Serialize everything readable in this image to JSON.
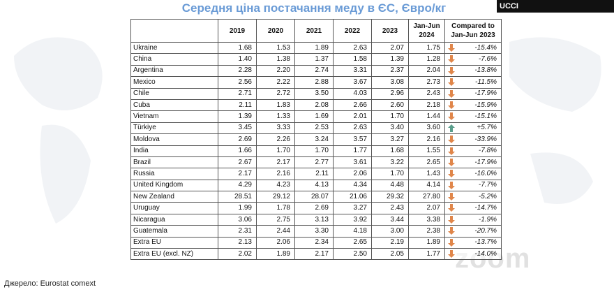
{
  "header": {
    "title": "Середня ціна постачання меду в ЄС, Євро/кг",
    "badge": "UCCI"
  },
  "table": {
    "columns": [
      "",
      "2019",
      "2020",
      "2021",
      "2022",
      "2023",
      "Jan-Jun 2024",
      "Compared to Jan-Jun 2023"
    ],
    "rows": [
      [
        "Ukraine",
        "1.68",
        "1.53",
        "1.89",
        "2.63",
        "2.07",
        "1.75",
        "-15.4%"
      ],
      [
        "China",
        "1.40",
        "1.38",
        "1.37",
        "1.58",
        "1.39",
        "1.28",
        "-7.6%"
      ],
      [
        "Argentina",
        "2.28",
        "2.20",
        "2.74",
        "3.31",
        "2.37",
        "2.04",
        "-13.8%"
      ],
      [
        "Mexico",
        "2.56",
        "2.22",
        "2.88",
        "3.67",
        "3.08",
        "2.73",
        "-11.5%"
      ],
      [
        "Chile",
        "2.71",
        "2.72",
        "3.50",
        "4.03",
        "2.96",
        "2.43",
        "-17.9%"
      ],
      [
        "Cuba",
        "2.11",
        "1.83",
        "2.08",
        "2.66",
        "2.60",
        "2.18",
        "-15.9%"
      ],
      [
        "Vietnam",
        "1.39",
        "1.33",
        "1.69",
        "2.01",
        "1.70",
        "1.44",
        "-15.1%"
      ],
      [
        "Türkiye",
        "3.45",
        "3.33",
        "2.53",
        "2.63",
        "3.40",
        "3.60",
        "+5.7%"
      ],
      [
        "Moldova",
        "2.69",
        "2.26",
        "3.24",
        "3.57",
        "3.27",
        "2.16",
        "-33.9%"
      ],
      [
        "India",
        "1.66",
        "1.70",
        "1.70",
        "1.77",
        "1.68",
        "1.55",
        "-7.8%"
      ],
      [
        "Brazil",
        "2.67",
        "2.17",
        "2.77",
        "3.61",
        "3.22",
        "2.65",
        "-17.9%"
      ],
      [
        "Russia",
        "2.17",
        "2.16",
        "2.11",
        "2.06",
        "1.70",
        "1.43",
        "-16.0%"
      ],
      [
        "United Kingdom",
        "4.29",
        "4.23",
        "4.13",
        "4.34",
        "4.48",
        "4.14",
        "-7.7%"
      ],
      [
        "New Zealand",
        "28.51",
        "29.12",
        "28.07",
        "21.06",
        "29.32",
        "27.80",
        "-5.2%"
      ],
      [
        "Uruguay",
        "1.99",
        "1.78",
        "2.69",
        "3.27",
        "2.43",
        "2.07",
        "-14.7%"
      ],
      [
        "Nicaragua",
        "3.06",
        "2.75",
        "3.13",
        "3.92",
        "3.44",
        "3.38",
        "-1.9%"
      ],
      [
        "Guatemala",
        "2.31",
        "2.44",
        "3.30",
        "4.18",
        "3.00",
        "2.38",
        "-20.7%"
      ],
      [
        "Extra EU",
        "2.13",
        "2.06",
        "2.34",
        "2.65",
        "2.19",
        "1.89",
        "-13.7%"
      ],
      [
        "Extra EU (excl. NZ)",
        "2.02",
        "1.89",
        "2.17",
        "2.50",
        "2.05",
        "1.77",
        "-14.0%"
      ]
    ]
  },
  "footer": {
    "source": "Джерело: Eurostat comext",
    "watermark": "zoom"
  }
}
